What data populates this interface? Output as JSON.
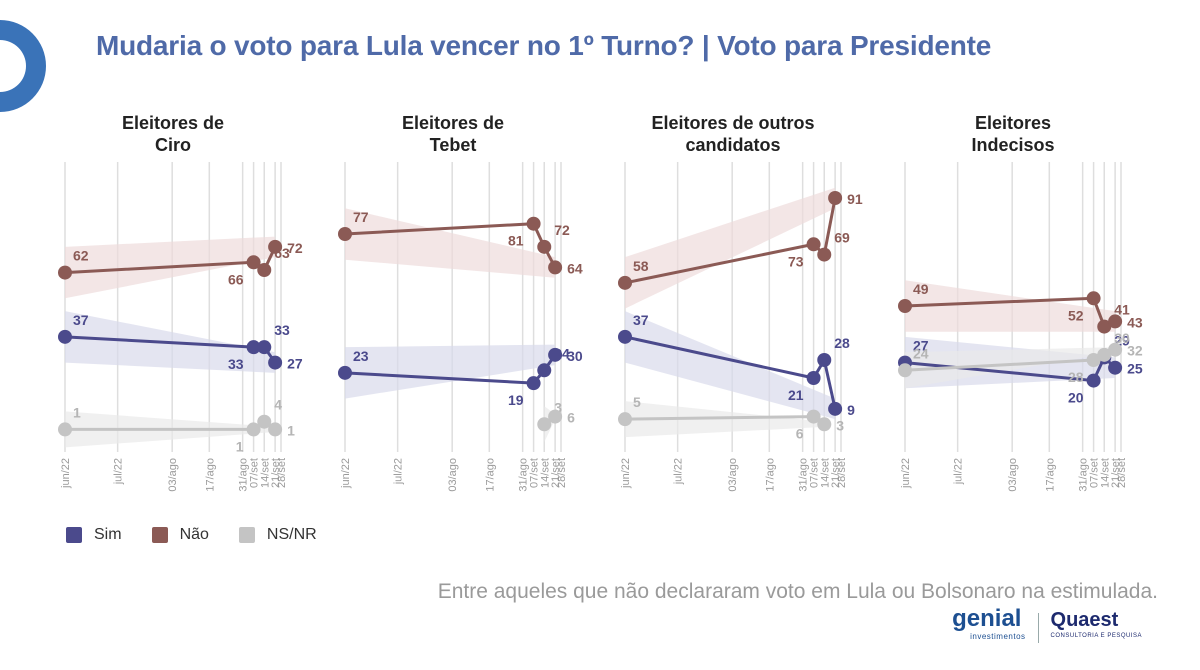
{
  "title": "Mudaria o voto para Lula vencer no 1º Turno? | Voto para Presidente",
  "legend": [
    {
      "label": "Sim",
      "color": "#4b4a8c"
    },
    {
      "label": "Não",
      "color": "#8b5a55"
    },
    {
      "label": "NS/NR",
      "color": "#c4c4c4"
    }
  ],
  "footnote": "Entre aqueles que não declararam voto em Lula ou Bolsonaro na estimulada.",
  "logos": {
    "genial": "genial",
    "genial_sub": "investimentos",
    "quaest": "Quaest",
    "quaest_sub": "CONSULTORIA E PESQUISA"
  },
  "chart_data": [
    {
      "type": "line",
      "title_lines": [
        "Eleitores de",
        "Ciro"
      ],
      "x": [
        "jun/22",
        "jul/22",
        "03/ago",
        "17/ago",
        "31/ago",
        "07/set",
        "14/set",
        "21/set",
        "28/set"
      ],
      "series": [
        {
          "name": "Sim",
          "color": "#4b4a8c",
          "points": [
            [
              0,
              37
            ],
            [
              5,
              33
            ],
            [
              6,
              33
            ],
            [
              7,
              27
            ]
          ],
          "labels": [
            "37",
            "33",
            "33",
            "27"
          ]
        },
        {
          "name": "Não",
          "color": "#8b5a55",
          "points": [
            [
              0,
              62
            ],
            [
              5,
              66
            ],
            [
              6,
              63
            ],
            [
              7,
              72
            ]
          ],
          "labels": [
            "62",
            "66",
            "63",
            "72"
          ]
        },
        {
          "name": "NS/NR",
          "color": "#c4c4c4",
          "points": [
            [
              0,
              1
            ],
            [
              5,
              1
            ],
            [
              6,
              4
            ],
            [
              7,
              1
            ]
          ],
          "labels": [
            "1",
            "1",
            "4",
            "1"
          ]
        }
      ]
    },
    {
      "type": "line",
      "title_lines": [
        "Eleitores de",
        "Tebet"
      ],
      "x": [
        "jun/22",
        "jul/22",
        "03/ago",
        "17/ago",
        "31/ago",
        "07/set",
        "14/set",
        "21/set",
        "28/set"
      ],
      "series": [
        {
          "name": "Sim",
          "color": "#4b4a8c",
          "points": [
            [
              0,
              23
            ],
            [
              5,
              19
            ],
            [
              6,
              24
            ],
            [
              7,
              30
            ]
          ],
          "labels": [
            "23",
            "19",
            "24",
            "30"
          ]
        },
        {
          "name": "Não",
          "color": "#8b5a55",
          "points": [
            [
              0,
              77
            ],
            [
              5,
              81
            ],
            [
              6,
              72
            ],
            [
              7,
              64
            ]
          ],
          "labels": [
            "77",
            "81",
            "72",
            "64"
          ]
        },
        {
          "name": "NS/NR",
          "color": "#c4c4c4",
          "points": [
            [
              6,
              3
            ],
            [
              7,
              6
            ]
          ],
          "labels": [
            "3",
            "6"
          ]
        }
      ]
    },
    {
      "type": "line",
      "title_lines": [
        "Eleitores de outros",
        "candidatos"
      ],
      "x": [
        "jun/22",
        "jul/22",
        "03/ago",
        "17/ago",
        "31/ago",
        "07/set",
        "14/set",
        "21/set",
        "28/set"
      ],
      "series": [
        {
          "name": "Sim",
          "color": "#4b4a8c",
          "points": [
            [
              0,
              37
            ],
            [
              5,
              21
            ],
            [
              6,
              28
            ],
            [
              7,
              9
            ]
          ],
          "labels": [
            "37",
            "21",
            "28",
            "9"
          ]
        },
        {
          "name": "Não",
          "color": "#8b5a55",
          "points": [
            [
              0,
              58
            ],
            [
              5,
              73
            ],
            [
              6,
              69
            ],
            [
              7,
              91
            ]
          ],
          "labels": [
            "58",
            "73",
            "69",
            "91"
          ]
        },
        {
          "name": "NS/NR",
          "color": "#c4c4c4",
          "points": [
            [
              0,
              5
            ],
            [
              5,
              6
            ],
            [
              6,
              3
            ]
          ],
          "labels": [
            "5",
            "6",
            "3"
          ]
        }
      ]
    },
    {
      "type": "line",
      "title_lines": [
        "Eleitores",
        "Indecisos"
      ],
      "x": [
        "jun/22",
        "jul/22",
        "03/ago",
        "17/ago",
        "31/ago",
        "07/set",
        "14/set",
        "21/set",
        "28/set"
      ],
      "series": [
        {
          "name": "Sim",
          "color": "#4b4a8c",
          "points": [
            [
              0,
              27
            ],
            [
              5,
              20
            ],
            [
              6,
              29
            ],
            [
              7,
              25
            ]
          ],
          "labels": [
            "27",
            "20",
            "29",
            "25"
          ]
        },
        {
          "name": "Não",
          "color": "#8b5a55",
          "points": [
            [
              0,
              49
            ],
            [
              5,
              52
            ],
            [
              6,
              41
            ],
            [
              7,
              43
            ]
          ],
          "labels": [
            "49",
            "52",
            "41",
            "43"
          ]
        },
        {
          "name": "NS/NR",
          "color": "#c4c4c4",
          "points": [
            [
              0,
              24
            ],
            [
              5,
              28
            ],
            [
              6,
              30
            ],
            [
              7,
              32
            ]
          ],
          "labels": [
            "24",
            "28",
            "30",
            "32"
          ]
        }
      ]
    }
  ]
}
